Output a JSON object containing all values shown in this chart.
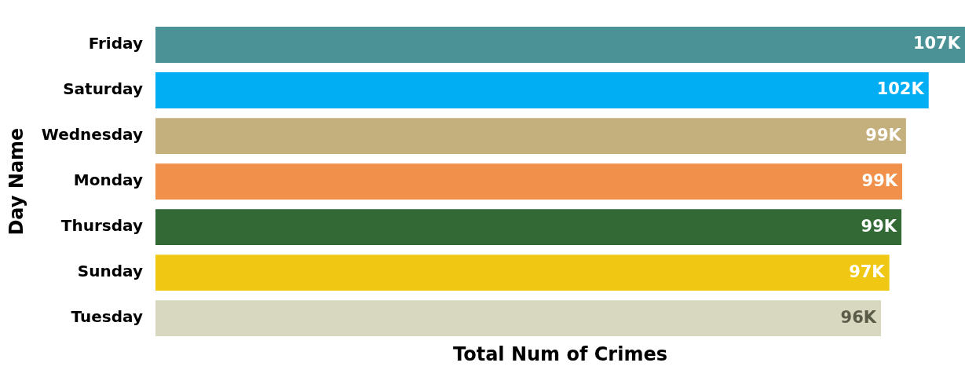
{
  "chart_data": {
    "type": "bar",
    "orientation": "horizontal",
    "xlabel": "Total Num of Crimes",
    "ylabel": "Day Name",
    "categories": [
      "Friday",
      "Saturday",
      "Wednesday",
      "Monday",
      "Thursday",
      "Sunday",
      "Tuesday"
    ],
    "values": [
      107000,
      102200,
      99200,
      98700,
      98600,
      97000,
      95900
    ],
    "value_labels": [
      "107K",
      "102K",
      "99K",
      "99K",
      "99K",
      "97K",
      "96K"
    ],
    "colors": [
      "#4a9296",
      "#01aef4",
      "#c4b07c",
      "#f0904a",
      "#336934",
      "#f0c814",
      "#d8d8c0"
    ],
    "xlim": [
      0,
      107000
    ],
    "tick_labels": "y",
    "grid": false,
    "legend": false
  }
}
